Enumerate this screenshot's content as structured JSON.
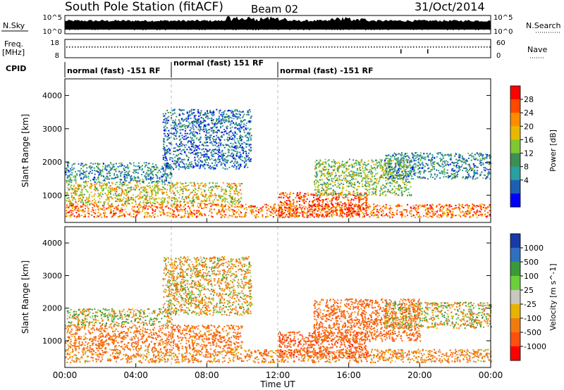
{
  "header": {
    "station": "South Pole Station (fitACF)",
    "beam": "Beam 02",
    "date": "31/Oct/2014"
  },
  "noise_panel": {
    "left_label": "N.Sky",
    "right_label": "N.Search",
    "ticks_left": [
      "10^5",
      "10^0"
    ],
    "ticks_right": [
      "10^5",
      "10^0"
    ]
  },
  "freq_panel": {
    "left_label": "Freq.",
    "left_units": "[MHz]",
    "right_label": "Nave",
    "ticks_left": [
      "18",
      "8"
    ],
    "ticks_right": [
      "60",
      "0"
    ]
  },
  "cpid": {
    "label": "CPID",
    "segments": [
      {
        "start_hour": 0,
        "end_hour": 6,
        "text": "normal (fast) -151 RF"
      },
      {
        "start_hour": 6,
        "end_hour": 12,
        "text": "normal (fast) 151 RF"
      },
      {
        "start_hour": 12,
        "end_hour": 24,
        "text": "normal (fast) -151 RF"
      }
    ]
  },
  "x_axis": {
    "label": "Time UT",
    "ticks": [
      "00:00",
      "04:00",
      "08:00",
      "12:00",
      "16:00",
      "20:00",
      "00:00"
    ]
  },
  "chart_data": [
    {
      "type": "heatmap",
      "name": "power",
      "ylabel": "Slant Range [km]",
      "xlabel": "",
      "xlim": [
        0,
        24
      ],
      "ylim": [
        180,
        4500
      ],
      "yticks": [
        1000,
        2000,
        3000,
        4000
      ],
      "colorbar": {
        "label": "Power [dB]",
        "ticks": [
          "28",
          "24",
          "20",
          "16",
          "12",
          "8",
          "4"
        ],
        "colors": [
          "#ff0000",
          "#ff4a00",
          "#ff8c00",
          "#e8b800",
          "#7ec832",
          "#3d8f55",
          "#2aa0a0",
          "#1d5fb5",
          "#0000ff"
        ]
      },
      "bands": [
        {
          "x": [
            0,
            24
          ],
          "y": [
            350,
            750
          ],
          "value": 24
        },
        {
          "x": [
            0,
            10
          ],
          "y": [
            750,
            1400
          ],
          "value": 18
        },
        {
          "x": [
            0,
            6
          ],
          "y": [
            1400,
            2000
          ],
          "value": 8
        },
        {
          "x": [
            5.5,
            10.5
          ],
          "y": [
            1800,
            3600
          ],
          "value": 6
        },
        {
          "x": [
            12,
            17
          ],
          "y": [
            400,
            1100
          ],
          "value": 27
        },
        {
          "x": [
            14,
            19.5
          ],
          "y": [
            1000,
            2100
          ],
          "value": 14
        },
        {
          "x": [
            18,
            24
          ],
          "y": [
            1500,
            2300
          ],
          "value": 8
        }
      ]
    },
    {
      "type": "heatmap",
      "name": "velocity",
      "ylabel": "Slant Range [km]",
      "xlabel": "Time UT",
      "xlim": [
        0,
        24
      ],
      "ylim": [
        180,
        4500
      ],
      "yticks": [
        1000,
        2000,
        3000,
        4000
      ],
      "colorbar": {
        "label": "Velocity [m s^-1]",
        "ticks": [
          "1000",
          "500",
          "100",
          "25",
          "-25",
          "-100",
          "-500",
          "-1000"
        ],
        "colors": [
          "#1a3aa8",
          "#2f6fbf",
          "#3a9a3a",
          "#6ccf3a",
          "#c8c8c0",
          "#e8b300",
          "#f07c10",
          "#ff5010",
          "#ff0000"
        ]
      },
      "bands": [
        {
          "x": [
            0,
            24
          ],
          "y": [
            350,
            750
          ],
          "value": -300
        },
        {
          "x": [
            0,
            10
          ],
          "y": [
            750,
            1500
          ],
          "value": -400
        },
        {
          "x": [
            0,
            6
          ],
          "y": [
            1500,
            2000
          ],
          "value": 0
        },
        {
          "x": [
            5.5,
            10.5
          ],
          "y": [
            1800,
            3600
          ],
          "value": -150
        },
        {
          "x": [
            12,
            17
          ],
          "y": [
            500,
            1300
          ],
          "value": -700
        },
        {
          "x": [
            14,
            20
          ],
          "y": [
            1000,
            2300
          ],
          "value": -500
        },
        {
          "x": [
            18,
            24
          ],
          "y": [
            1400,
            2200
          ],
          "value": -60
        }
      ]
    }
  ]
}
